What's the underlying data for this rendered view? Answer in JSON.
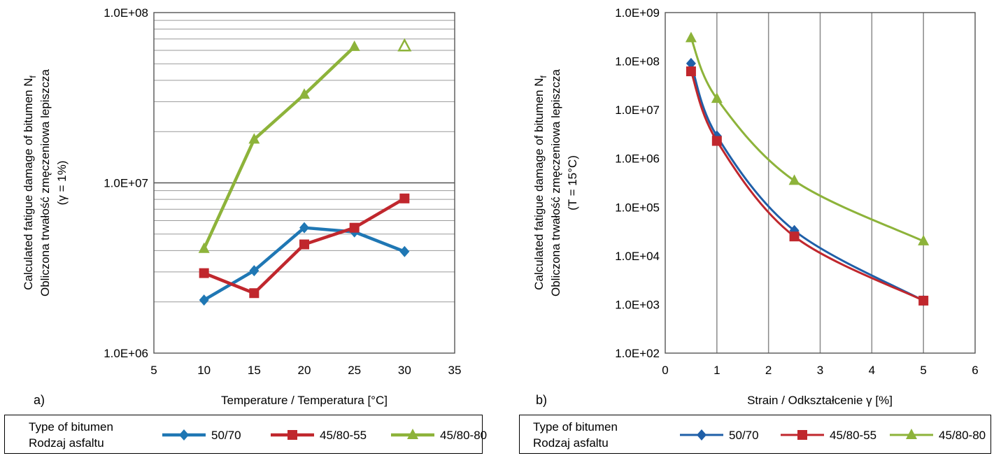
{
  "chart_data": [
    {
      "type": "line",
      "panel_label": "a)",
      "xlabel": "Temperature / Temperatura [°C]",
      "ylabel_lines": [
        "Calculated fatigue damage of bitumen N",
        "Obliczona trwałość zmęczeniowa lepiszcza",
        "(γ = 1%)"
      ],
      "ylabel_subscript": "f",
      "x_ticks": [
        "5",
        "10",
        "15",
        "20",
        "25",
        "30",
        "35"
      ],
      "xlim": [
        5,
        35
      ],
      "y_scale": "log",
      "ylim": [
        1000000,
        100000000
      ],
      "y_ticks": [
        "1.0E+06",
        "1.0E+07",
        "1.0E+08"
      ],
      "grid": "horizontal major and minor",
      "series": [
        {
          "name": "50/70",
          "color": "#1f77b4",
          "marker": "diamond",
          "x": [
            10,
            15,
            20,
            25,
            30
          ],
          "values": [
            2050000,
            3050000,
            5450000,
            5150000,
            3950000
          ]
        },
        {
          "name": "45/80-55",
          "color": "#c0272d",
          "marker": "square",
          "x": [
            10,
            15,
            20,
            25,
            30
          ],
          "values": [
            2950000,
            2250000,
            4350000,
            5450000,
            8100000
          ]
        },
        {
          "name": "45/80-80",
          "color": "#8db33a",
          "marker": "triangle",
          "x": [
            10,
            15,
            20,
            25
          ],
          "values": [
            4100000,
            18000000,
            33000000,
            63000000
          ]
        },
        {
          "name": "45/80-80",
          "color": "#8db33a",
          "marker": "triangle-open",
          "x": [
            30
          ],
          "values": [
            64000000
          ]
        }
      ]
    },
    {
      "type": "line",
      "panel_label": "b)",
      "xlabel": "Strain / Odkształcenie γ [%]",
      "ylabel_lines": [
        "Calculated fatigue damage of bitumen N",
        "Obliczona trwałość zmęczeniowa lepiszcza",
        "(T = 15°C)"
      ],
      "ylabel_subscript": "f",
      "x_ticks": [
        "0",
        "1",
        "2",
        "3",
        "4",
        "5",
        "6"
      ],
      "xlim": [
        0,
        6
      ],
      "y_scale": "log",
      "ylim": [
        100,
        1000000000
      ],
      "y_ticks": [
        "1.0E+02",
        "1.0E+03",
        "1.0E+04",
        "1.0E+05",
        "1.0E+06",
        "1.0E+07",
        "1.0E+08",
        "1.0E+09"
      ],
      "grid": "vertical",
      "series": [
        {
          "name": "50/70",
          "color": "#1f5fa8",
          "marker": "diamond",
          "x": [
            0.5,
            1,
            2.5,
            5
          ],
          "values": [
            90000000,
            2900000,
            33000,
            1200
          ]
        },
        {
          "name": "45/80-55",
          "color": "#c0272d",
          "marker": "square",
          "x": [
            0.5,
            1,
            2.5,
            5
          ],
          "values": [
            62000000,
            2300000,
            25000,
            1200
          ]
        },
        {
          "name": "45/80-80",
          "color": "#8db33a",
          "marker": "triangle",
          "x": [
            0.5,
            1,
            2.5,
            5
          ],
          "values": [
            300000000,
            17000000,
            350000,
            20000
          ]
        }
      ]
    }
  ],
  "legends": [
    {
      "title_lines": [
        "Type of bitumen",
        "Rodzaj asfaltu"
      ],
      "entries": [
        "50/70",
        "45/80-55",
        "45/80-80"
      ]
    },
    {
      "title_lines": [
        "Type of bitumen",
        "Rodzaj asfaltu"
      ],
      "entries": [
        "50/70",
        "45/80-55",
        "45/80-80"
      ]
    }
  ]
}
